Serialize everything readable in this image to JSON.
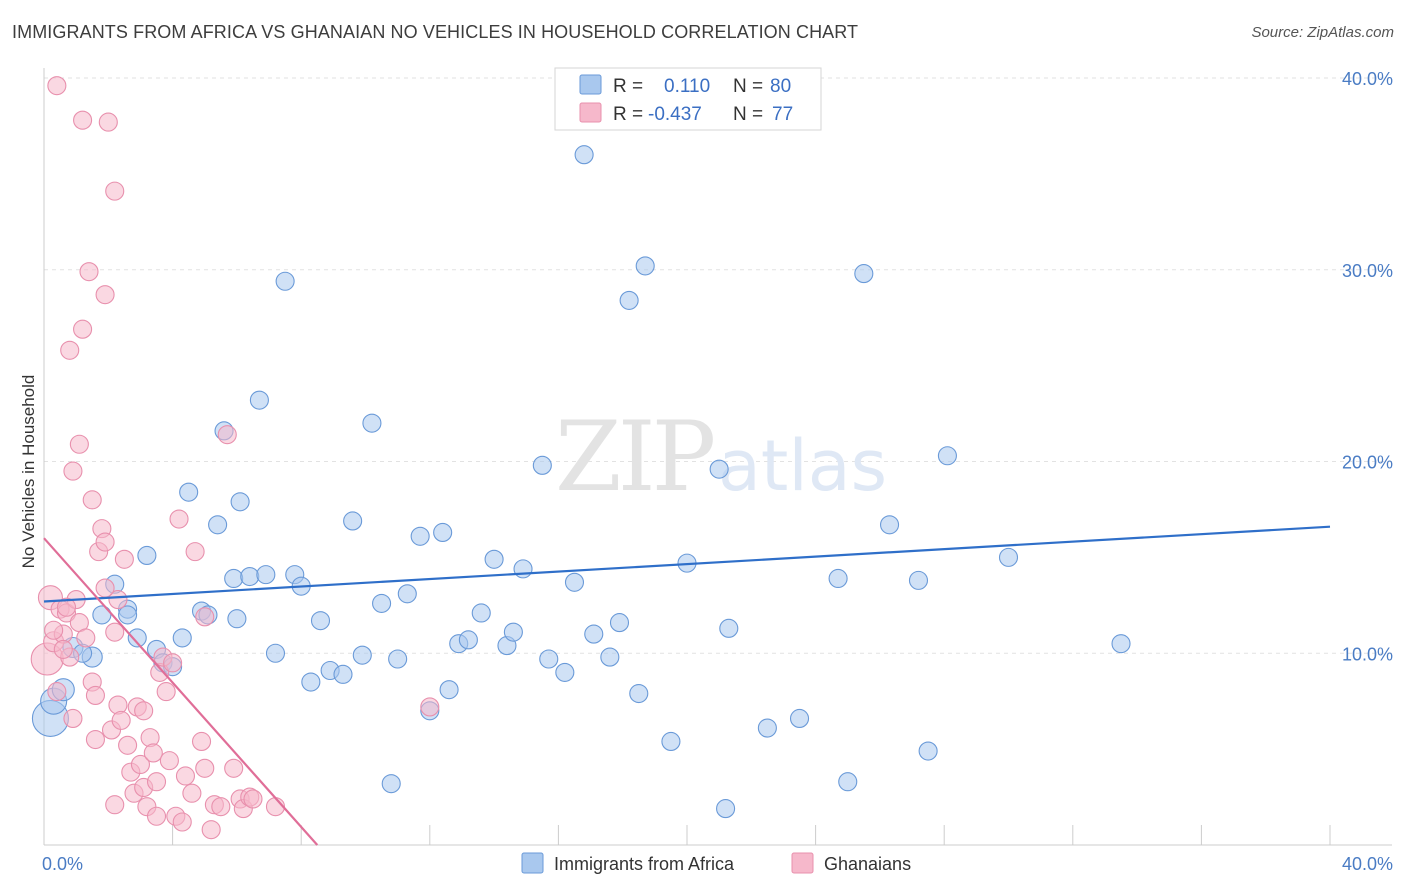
{
  "header": {
    "title": "IMMIGRANTS FROM AFRICA VS GHANAIAN NO VEHICLES IN HOUSEHOLD CORRELATION CHART",
    "source": "Source: ZipAtlas.com"
  },
  "watermark": {
    "zip": "ZIP",
    "atlas": "atlas"
  },
  "legend": {
    "r_label": "R =",
    "n_label": "N =",
    "entries": [
      {
        "r": "0.110",
        "n": "80",
        "color": "#a9c8ee"
      },
      {
        "r": "-0.437",
        "n": "77",
        "color": "#f6b8cb"
      }
    ]
  },
  "chart_data": {
    "type": "scatter",
    "title": "IMMIGRANTS FROM AFRICA VS GHANAIAN NO VEHICLES IN HOUSEHOLD CORRELATION CHART",
    "xlabel": "",
    "ylabel": "No Vehicles in Household",
    "xlim": [
      0,
      40
    ],
    "ylim": [
      0,
      40
    ],
    "x_tick_labels": [
      "0.0%",
      "40.0%"
    ],
    "y_ticks": [
      10,
      20,
      30,
      40
    ],
    "y_tick_labels": [
      "10.0%",
      "20.0%",
      "30.0%",
      "40.0%"
    ],
    "grid": true,
    "legend_placement": "top-center",
    "series": [
      {
        "name": "Immigrants from Africa",
        "color": "#a9c8ee",
        "stroke": "#6a9ad8",
        "trend": {
          "x": [
            0,
            40
          ],
          "y": [
            12.7,
            16.6
          ],
          "color": "#2f6fc9"
        },
        "points": [
          [
            0.2,
            6.6,
            18
          ],
          [
            0.3,
            7.5,
            13
          ],
          [
            0.6,
            8.1,
            11
          ],
          [
            0.9,
            10.3,
            10
          ],
          [
            1.5,
            9.8,
            10
          ],
          [
            1.2,
            10.0,
            9
          ],
          [
            1.8,
            12.0,
            9
          ],
          [
            2.2,
            13.6,
            9
          ],
          [
            2.6,
            12.3,
            9
          ],
          [
            2.9,
            10.8,
            9
          ],
          [
            3.2,
            15.1,
            9
          ],
          [
            3.5,
            10.2,
            9
          ],
          [
            3.7,
            9.5,
            9
          ],
          [
            4.0,
            9.3,
            9
          ],
          [
            4.3,
            10.8,
            9
          ],
          [
            4.5,
            18.4,
            9
          ],
          [
            4.9,
            12.2,
            9
          ],
          [
            5.1,
            12.0,
            9
          ],
          [
            5.4,
            16.7,
            9
          ],
          [
            5.6,
            21.6,
            9
          ],
          [
            5.9,
            13.9,
            9
          ],
          [
            6.1,
            17.9,
            9
          ],
          [
            6.4,
            14.0,
            9
          ],
          [
            6.7,
            23.2,
            9
          ],
          [
            6.9,
            14.1,
            9
          ],
          [
            7.2,
            10.0,
            9
          ],
          [
            7.5,
            29.4,
            9
          ],
          [
            7.8,
            14.1,
            9
          ],
          [
            8.0,
            13.5,
            9
          ],
          [
            8.3,
            8.5,
            9
          ],
          [
            8.6,
            11.7,
            9
          ],
          [
            8.9,
            9.1,
            9
          ],
          [
            9.3,
            8.9,
            9
          ],
          [
            9.6,
            16.9,
            9
          ],
          [
            9.9,
            9.9,
            9
          ],
          [
            10.2,
            22.0,
            9
          ],
          [
            10.5,
            12.6,
            9
          ],
          [
            11.0,
            9.7,
            9
          ],
          [
            11.3,
            13.1,
            9
          ],
          [
            11.7,
            16.1,
            9
          ],
          [
            12.0,
            7.0,
            9
          ],
          [
            12.4,
            16.3,
            9
          ],
          [
            12.6,
            8.1,
            9
          ],
          [
            12.9,
            10.5,
            9
          ],
          [
            13.2,
            10.7,
            9
          ],
          [
            13.6,
            12.1,
            9
          ],
          [
            14.0,
            14.9,
            9
          ],
          [
            14.4,
            10.4,
            9
          ],
          [
            14.6,
            11.1,
            9
          ],
          [
            14.9,
            14.4,
            9
          ],
          [
            15.5,
            19.8,
            9
          ],
          [
            15.7,
            9.7,
            9
          ],
          [
            16.2,
            9.0,
            9
          ],
          [
            16.5,
            13.7,
            9
          ],
          [
            16.8,
            36.0,
            9
          ],
          [
            17.1,
            11.0,
            9
          ],
          [
            17.6,
            9.8,
            9
          ],
          [
            17.9,
            11.6,
            9
          ],
          [
            18.2,
            28.4,
            9
          ],
          [
            18.5,
            7.9,
            9
          ],
          [
            18.7,
            30.2,
            9
          ],
          [
            19.5,
            5.4,
            9
          ],
          [
            20.0,
            14.7,
            9
          ],
          [
            21.0,
            19.6,
            9
          ],
          [
            21.3,
            11.3,
            9
          ],
          [
            21.2,
            1.9,
            9
          ],
          [
            22.5,
            6.1,
            9
          ],
          [
            23.5,
            6.6,
            9
          ],
          [
            25.0,
            3.3,
            9
          ],
          [
            24.7,
            13.9,
            9
          ],
          [
            25.5,
            29.8,
            9
          ],
          [
            26.3,
            16.7,
            9
          ],
          [
            27.2,
            13.8,
            9
          ],
          [
            28.1,
            20.3,
            9
          ],
          [
            30.0,
            15.0,
            9
          ],
          [
            33.5,
            10.5,
            9
          ],
          [
            27.5,
            4.9,
            9
          ],
          [
            10.8,
            3.2,
            9
          ],
          [
            6.0,
            11.8,
            9
          ],
          [
            2.6,
            12.0,
            9
          ]
        ]
      },
      {
        "name": "Ghanaians",
        "color": "#f6b8cb",
        "stroke": "#e890ad",
        "trend": {
          "x": [
            0,
            8.5
          ],
          "y": [
            16.0,
            0
          ],
          "color": "#e06e98"
        },
        "points": [
          [
            0.1,
            9.7,
            16
          ],
          [
            0.2,
            12.9,
            12
          ],
          [
            0.3,
            10.6,
            10
          ],
          [
            0.5,
            12.3,
            9
          ],
          [
            0.6,
            11.0,
            9
          ],
          [
            0.7,
            12.1,
            9
          ],
          [
            0.8,
            9.8,
            9
          ],
          [
            0.4,
            8.0,
            9
          ],
          [
            1.0,
            12.8,
            9
          ],
          [
            1.1,
            11.6,
            9
          ],
          [
            1.3,
            10.8,
            9
          ],
          [
            1.5,
            8.5,
            9
          ],
          [
            1.6,
            7.8,
            9
          ],
          [
            1.7,
            15.3,
            9
          ],
          [
            1.8,
            16.5,
            9
          ],
          [
            1.9,
            15.8,
            9
          ],
          [
            2.1,
            6.0,
            9
          ],
          [
            2.2,
            11.1,
            9
          ],
          [
            2.3,
            7.3,
            9
          ],
          [
            2.4,
            6.5,
            9
          ],
          [
            2.6,
            5.2,
            9
          ],
          [
            2.7,
            3.8,
            9
          ],
          [
            2.8,
            2.7,
            9
          ],
          [
            2.5,
            14.9,
            9
          ],
          [
            2.9,
            7.2,
            9
          ],
          [
            3.0,
            4.2,
            9
          ],
          [
            3.1,
            3.0,
            9
          ],
          [
            3.3,
            5.6,
            9
          ],
          [
            3.4,
            4.8,
            9
          ],
          [
            3.5,
            3.3,
            9
          ],
          [
            3.6,
            9.0,
            9
          ],
          [
            3.7,
            9.8,
            9
          ],
          [
            3.8,
            8.0,
            9
          ],
          [
            3.9,
            4.4,
            9
          ],
          [
            4.1,
            1.5,
            9
          ],
          [
            4.2,
            17.0,
            9
          ],
          [
            4.3,
            1.2,
            9
          ],
          [
            4.4,
            3.6,
            9
          ],
          [
            4.6,
            2.7,
            9
          ],
          [
            4.7,
            15.3,
            9
          ],
          [
            4.9,
            5.4,
            9
          ],
          [
            5.0,
            4.0,
            9
          ],
          [
            5.2,
            0.8,
            9
          ],
          [
            5.3,
            2.1,
            9
          ],
          [
            5.5,
            2.0,
            9
          ],
          [
            5.7,
            21.4,
            9
          ],
          [
            5.9,
            4.0,
            9
          ],
          [
            6.1,
            2.4,
            9
          ],
          [
            6.2,
            1.9,
            9
          ],
          [
            6.4,
            2.5,
            9
          ],
          [
            6.5,
            2.4,
            9
          ],
          [
            7.2,
            2.0,
            9
          ],
          [
            12.0,
            7.2,
            9
          ],
          [
            1.2,
            37.8,
            9
          ],
          [
            2.0,
            37.7,
            9
          ],
          [
            0.4,
            39.6,
            9
          ],
          [
            2.2,
            34.1,
            9
          ],
          [
            1.4,
            29.9,
            9
          ],
          [
            1.9,
            28.7,
            9
          ],
          [
            1.2,
            26.9,
            9
          ],
          [
            0.8,
            25.8,
            9
          ],
          [
            1.1,
            20.9,
            9
          ],
          [
            0.9,
            19.5,
            9
          ],
          [
            1.5,
            18.0,
            9
          ],
          [
            0.7,
            12.4,
            9
          ],
          [
            2.3,
            12.8,
            9
          ],
          [
            3.1,
            7.0,
            9
          ],
          [
            4.0,
            9.5,
            9
          ],
          [
            1.6,
            5.5,
            9
          ],
          [
            2.2,
            2.1,
            9
          ],
          [
            3.2,
            2.0,
            9
          ],
          [
            0.6,
            10.2,
            9
          ],
          [
            1.9,
            13.4,
            9
          ],
          [
            0.3,
            11.2,
            9
          ],
          [
            5.0,
            11.9,
            9
          ],
          [
            3.5,
            1.5,
            9
          ],
          [
            0.9,
            6.6,
            9
          ]
        ]
      }
    ]
  },
  "bottom_legend": {
    "items": [
      {
        "label": "Immigrants from Africa",
        "color": "#a9c8ee"
      },
      {
        "label": "Ghanaians",
        "color": "#f6b8cb"
      }
    ]
  }
}
